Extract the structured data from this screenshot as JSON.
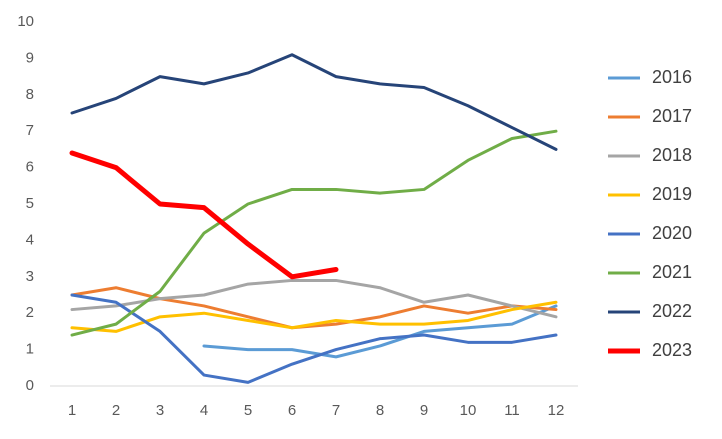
{
  "chart_data": {
    "type": "line",
    "categories": [
      "1",
      "2",
      "3",
      "4",
      "5",
      "6",
      "7",
      "8",
      "9",
      "10",
      "11",
      "12"
    ],
    "series": [
      {
        "name": "2016",
        "color": "#5b9bd5",
        "values": [
          null,
          null,
          null,
          1.1,
          1.0,
          1.0,
          0.8,
          1.1,
          1.5,
          1.6,
          1.7,
          2.2
        ]
      },
      {
        "name": "2017",
        "color": "#ed7d31",
        "values": [
          2.5,
          2.7,
          2.4,
          2.2,
          1.9,
          1.6,
          1.7,
          1.9,
          2.2,
          2.0,
          2.2,
          2.1
        ]
      },
      {
        "name": "2018",
        "color": "#a5a5a5",
        "values": [
          2.1,
          2.2,
          2.4,
          2.5,
          2.8,
          2.9,
          2.9,
          2.7,
          2.3,
          2.5,
          2.2,
          1.9
        ]
      },
      {
        "name": "2019",
        "color": "#ffc000",
        "values": [
          1.6,
          1.5,
          1.9,
          2.0,
          1.8,
          1.6,
          1.8,
          1.7,
          1.7,
          1.8,
          2.1,
          2.3
        ]
      },
      {
        "name": "2020",
        "color": "#4472c4",
        "values": [
          2.5,
          2.3,
          1.5,
          0.3,
          0.1,
          0.6,
          1.0,
          1.3,
          1.4,
          1.2,
          1.2,
          1.4
        ]
      },
      {
        "name": "2021",
        "color": "#70ad47",
        "values": [
          1.4,
          1.7,
          2.6,
          4.2,
          5.0,
          5.4,
          5.4,
          5.3,
          5.4,
          6.2,
          6.8,
          7.0
        ]
      },
      {
        "name": "2022",
        "color": "#264478",
        "values": [
          7.5,
          7.9,
          8.5,
          8.3,
          8.6,
          9.1,
          8.5,
          8.3,
          8.2,
          7.7,
          7.1,
          6.5
        ]
      },
      {
        "name": "2023",
        "color": "#ff0000",
        "values": [
          6.4,
          6.0,
          5.0,
          4.9,
          3.9,
          3.0,
          3.2,
          null,
          null,
          null,
          null,
          null
        ]
      }
    ],
    "ylim": [
      0,
      10
    ],
    "yticks": [
      0,
      1,
      2,
      3,
      4,
      5,
      6,
      7,
      8,
      9,
      10
    ],
    "grid": false,
    "legend": "right"
  }
}
